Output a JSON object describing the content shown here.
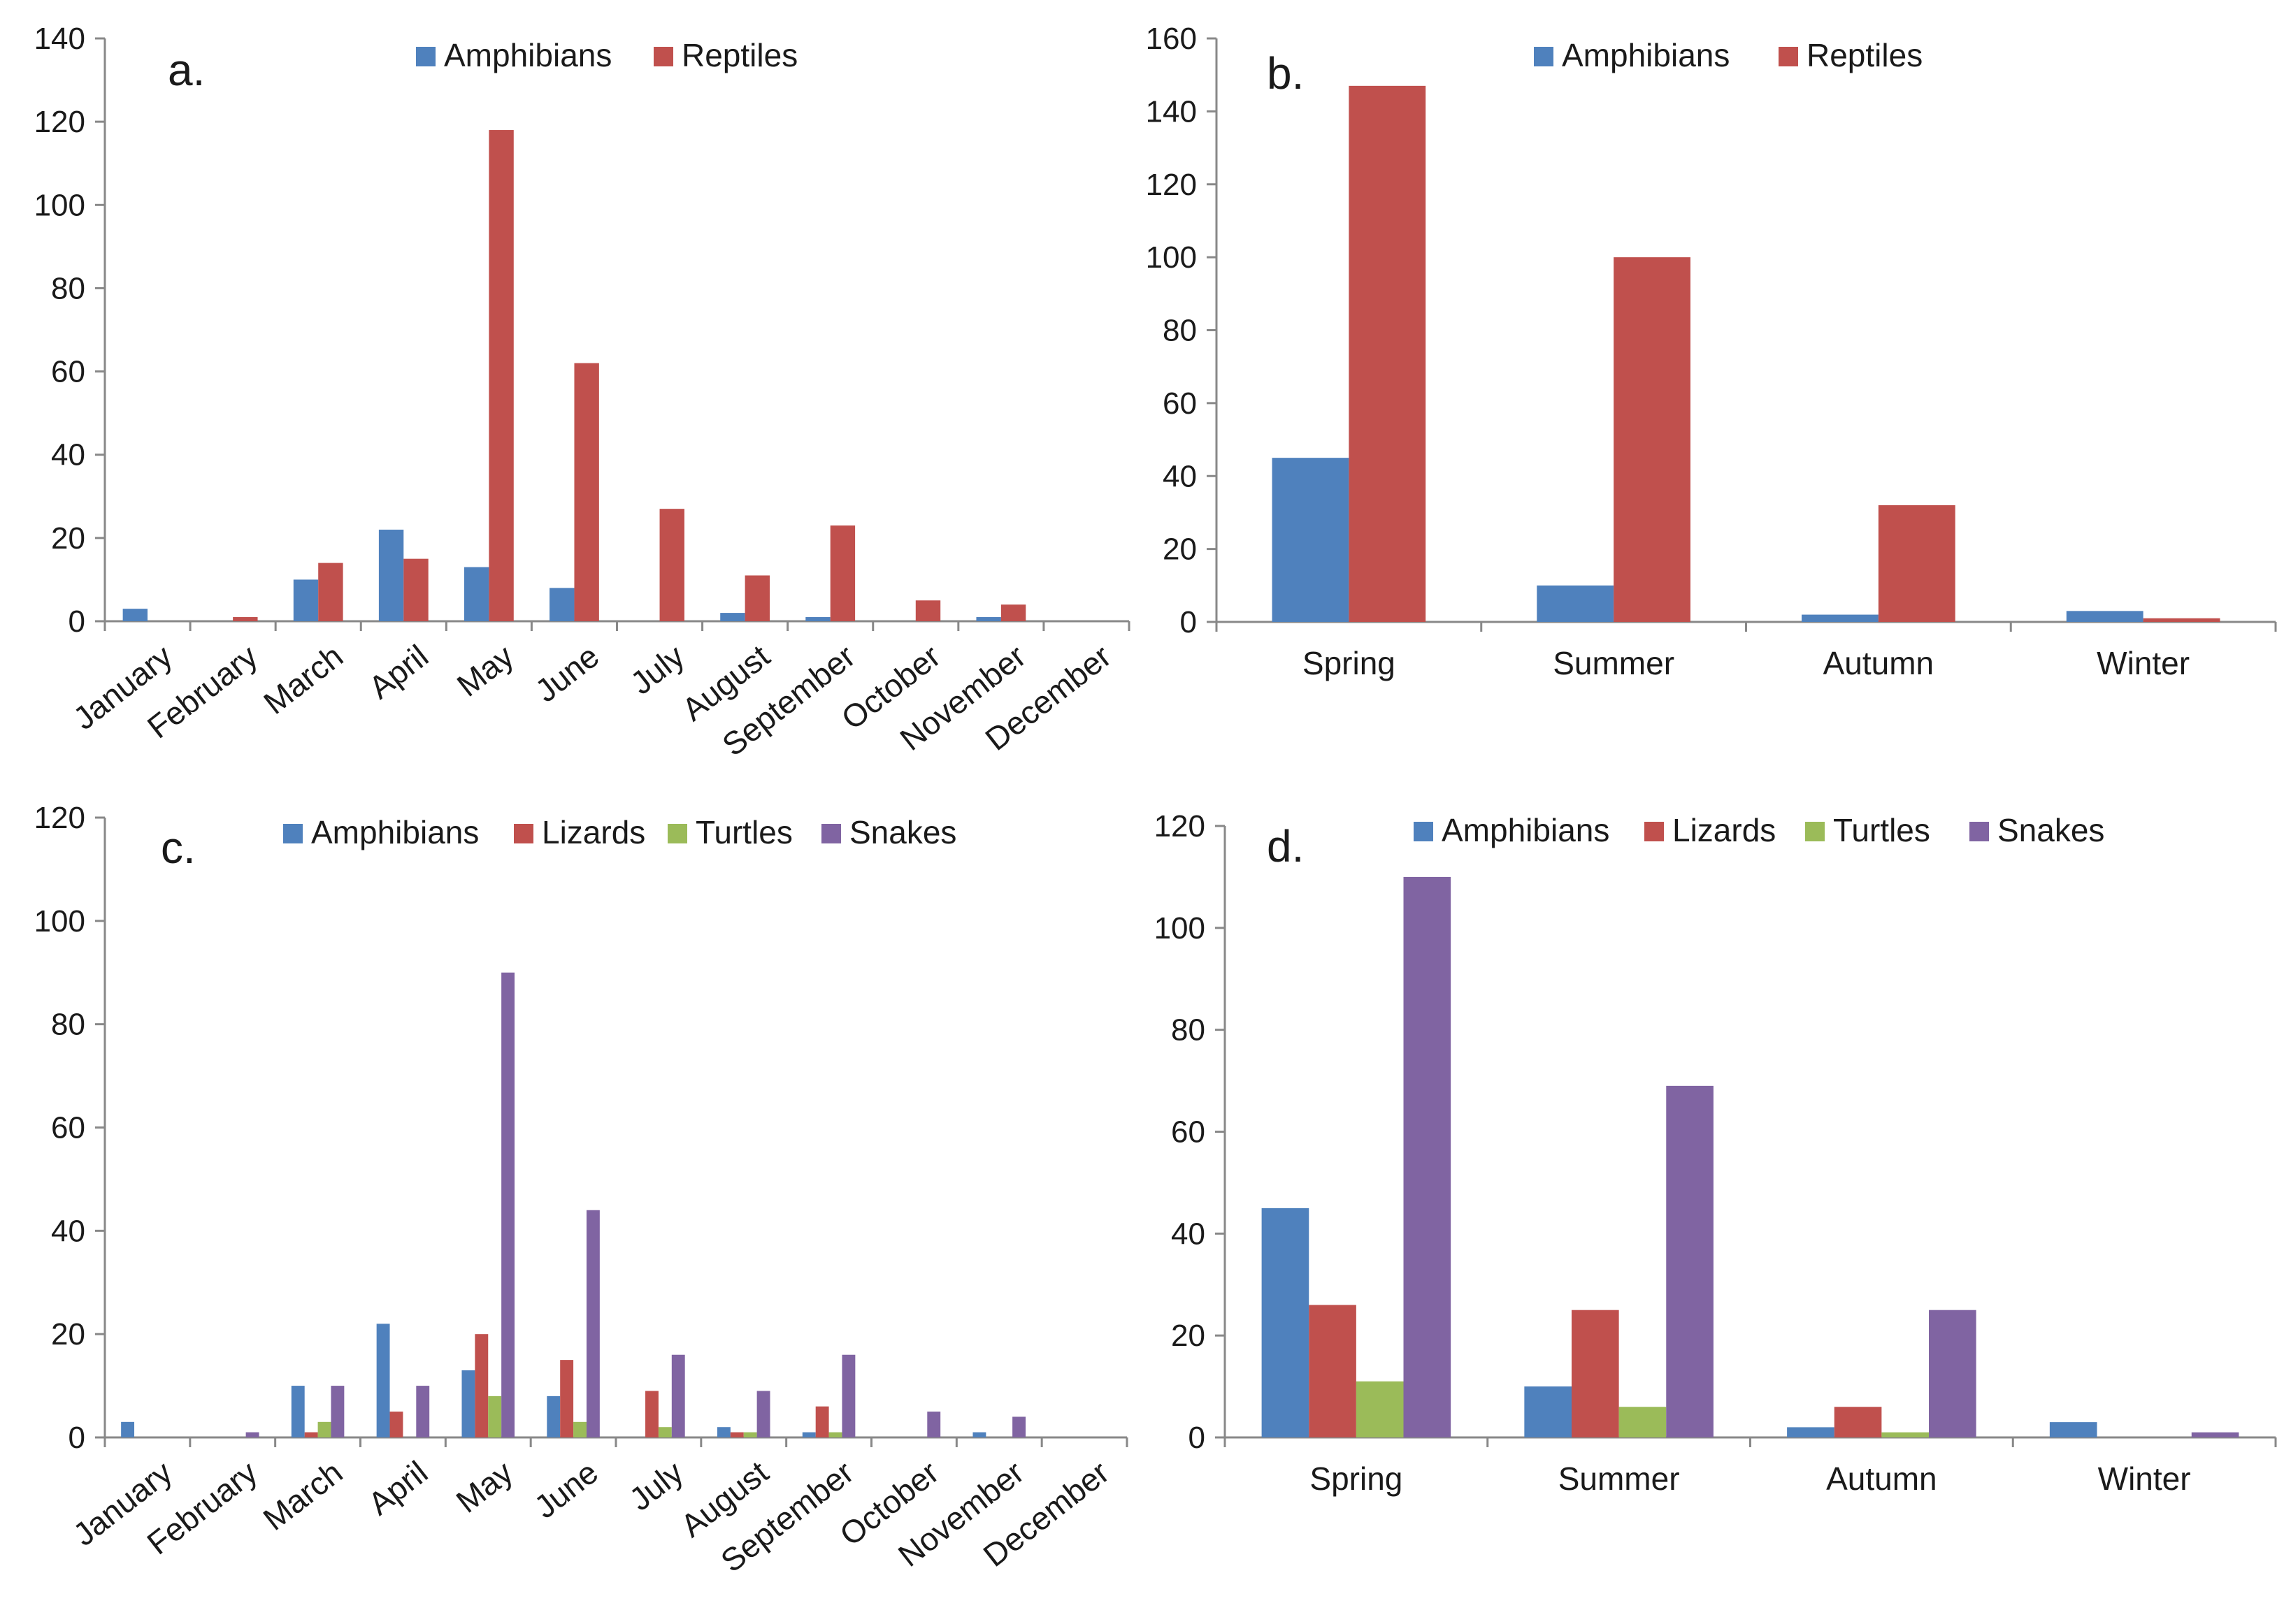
{
  "figure": {
    "background": "#ffffff",
    "axis_color": "#888888"
  },
  "series_colors": {
    "Amphibians": "#4f81bd",
    "Reptiles": "#c0504d",
    "Lizards": "#c0504d",
    "Turtles": "#9bbb59",
    "Snakes": "#8064a2"
  },
  "chart_data": [
    {
      "id": "a",
      "panel_label": "a.",
      "type": "bar",
      "title": "",
      "xlabel": "",
      "ylabel": "",
      "ylim": [
        0,
        140
      ],
      "yticks": [
        0,
        20,
        40,
        60,
        80,
        100,
        120,
        140
      ],
      "grid": false,
      "legend_position": "top-center",
      "rotate_labels": true,
      "categories": [
        "January",
        "February",
        "March",
        "April",
        "May",
        "June",
        "July",
        "August",
        "September",
        "October",
        "November",
        "December"
      ],
      "series": [
        {
          "name": "Amphibians",
          "values": [
            3,
            0,
            10,
            22,
            13,
            8,
            0,
            2,
            1,
            0,
            1,
            0
          ]
        },
        {
          "name": "Reptiles",
          "values": [
            0,
            1,
            14,
            15,
            118,
            62,
            27,
            11,
            23,
            5,
            4,
            0
          ]
        }
      ]
    },
    {
      "id": "b",
      "panel_label": "b.",
      "type": "bar",
      "title": "",
      "xlabel": "",
      "ylabel": "",
      "ylim": [
        0,
        160
      ],
      "yticks": [
        0,
        20,
        40,
        60,
        80,
        100,
        120,
        140,
        160
      ],
      "grid": false,
      "legend_position": "top-center",
      "rotate_labels": false,
      "categories": [
        "Spring",
        "Summer",
        "Autumn",
        "Winter"
      ],
      "series": [
        {
          "name": "Amphibians",
          "values": [
            45,
            10,
            2,
            3
          ]
        },
        {
          "name": "Reptiles",
          "values": [
            147,
            100,
            32,
            1
          ]
        }
      ]
    },
    {
      "id": "c",
      "panel_label": "c.",
      "type": "bar",
      "title": "",
      "xlabel": "",
      "ylabel": "",
      "ylim": [
        0,
        120
      ],
      "yticks": [
        0,
        20,
        40,
        60,
        80,
        100,
        120
      ],
      "grid": false,
      "legend_position": "top-center",
      "rotate_labels": true,
      "categories": [
        "January",
        "February",
        "March",
        "April",
        "May",
        "June",
        "July",
        "August",
        "September",
        "October",
        "November",
        "December"
      ],
      "series": [
        {
          "name": "Amphibians",
          "values": [
            3,
            0,
            10,
            22,
            13,
            8,
            0,
            2,
            1,
            0,
            1,
            0
          ]
        },
        {
          "name": "Lizards",
          "values": [
            0,
            0,
            1,
            5,
            20,
            15,
            9,
            1,
            6,
            0,
            0,
            0
          ]
        },
        {
          "name": "Turtles",
          "values": [
            0,
            0,
            3,
            0,
            8,
            3,
            2,
            1,
            1,
            0,
            0,
            0
          ]
        },
        {
          "name": "Snakes",
          "values": [
            0,
            1,
            10,
            10,
            90,
            44,
            16,
            9,
            16,
            5,
            4,
            0
          ]
        }
      ]
    },
    {
      "id": "d",
      "panel_label": "d.",
      "type": "bar",
      "title": "",
      "xlabel": "",
      "ylabel": "",
      "ylim": [
        0,
        120
      ],
      "yticks": [
        0,
        20,
        40,
        60,
        80,
        100,
        120
      ],
      "grid": false,
      "legend_position": "top-center",
      "rotate_labels": false,
      "categories": [
        "Spring",
        "Summer",
        "Autumn",
        "Winter"
      ],
      "series": [
        {
          "name": "Amphibians",
          "values": [
            45,
            10,
            2,
            3
          ]
        },
        {
          "name": "Lizards",
          "values": [
            26,
            25,
            6,
            0
          ]
        },
        {
          "name": "Turtles",
          "values": [
            11,
            6,
            1,
            0
          ]
        },
        {
          "name": "Snakes",
          "values": [
            110,
            69,
            25,
            1
          ]
        }
      ]
    }
  ]
}
